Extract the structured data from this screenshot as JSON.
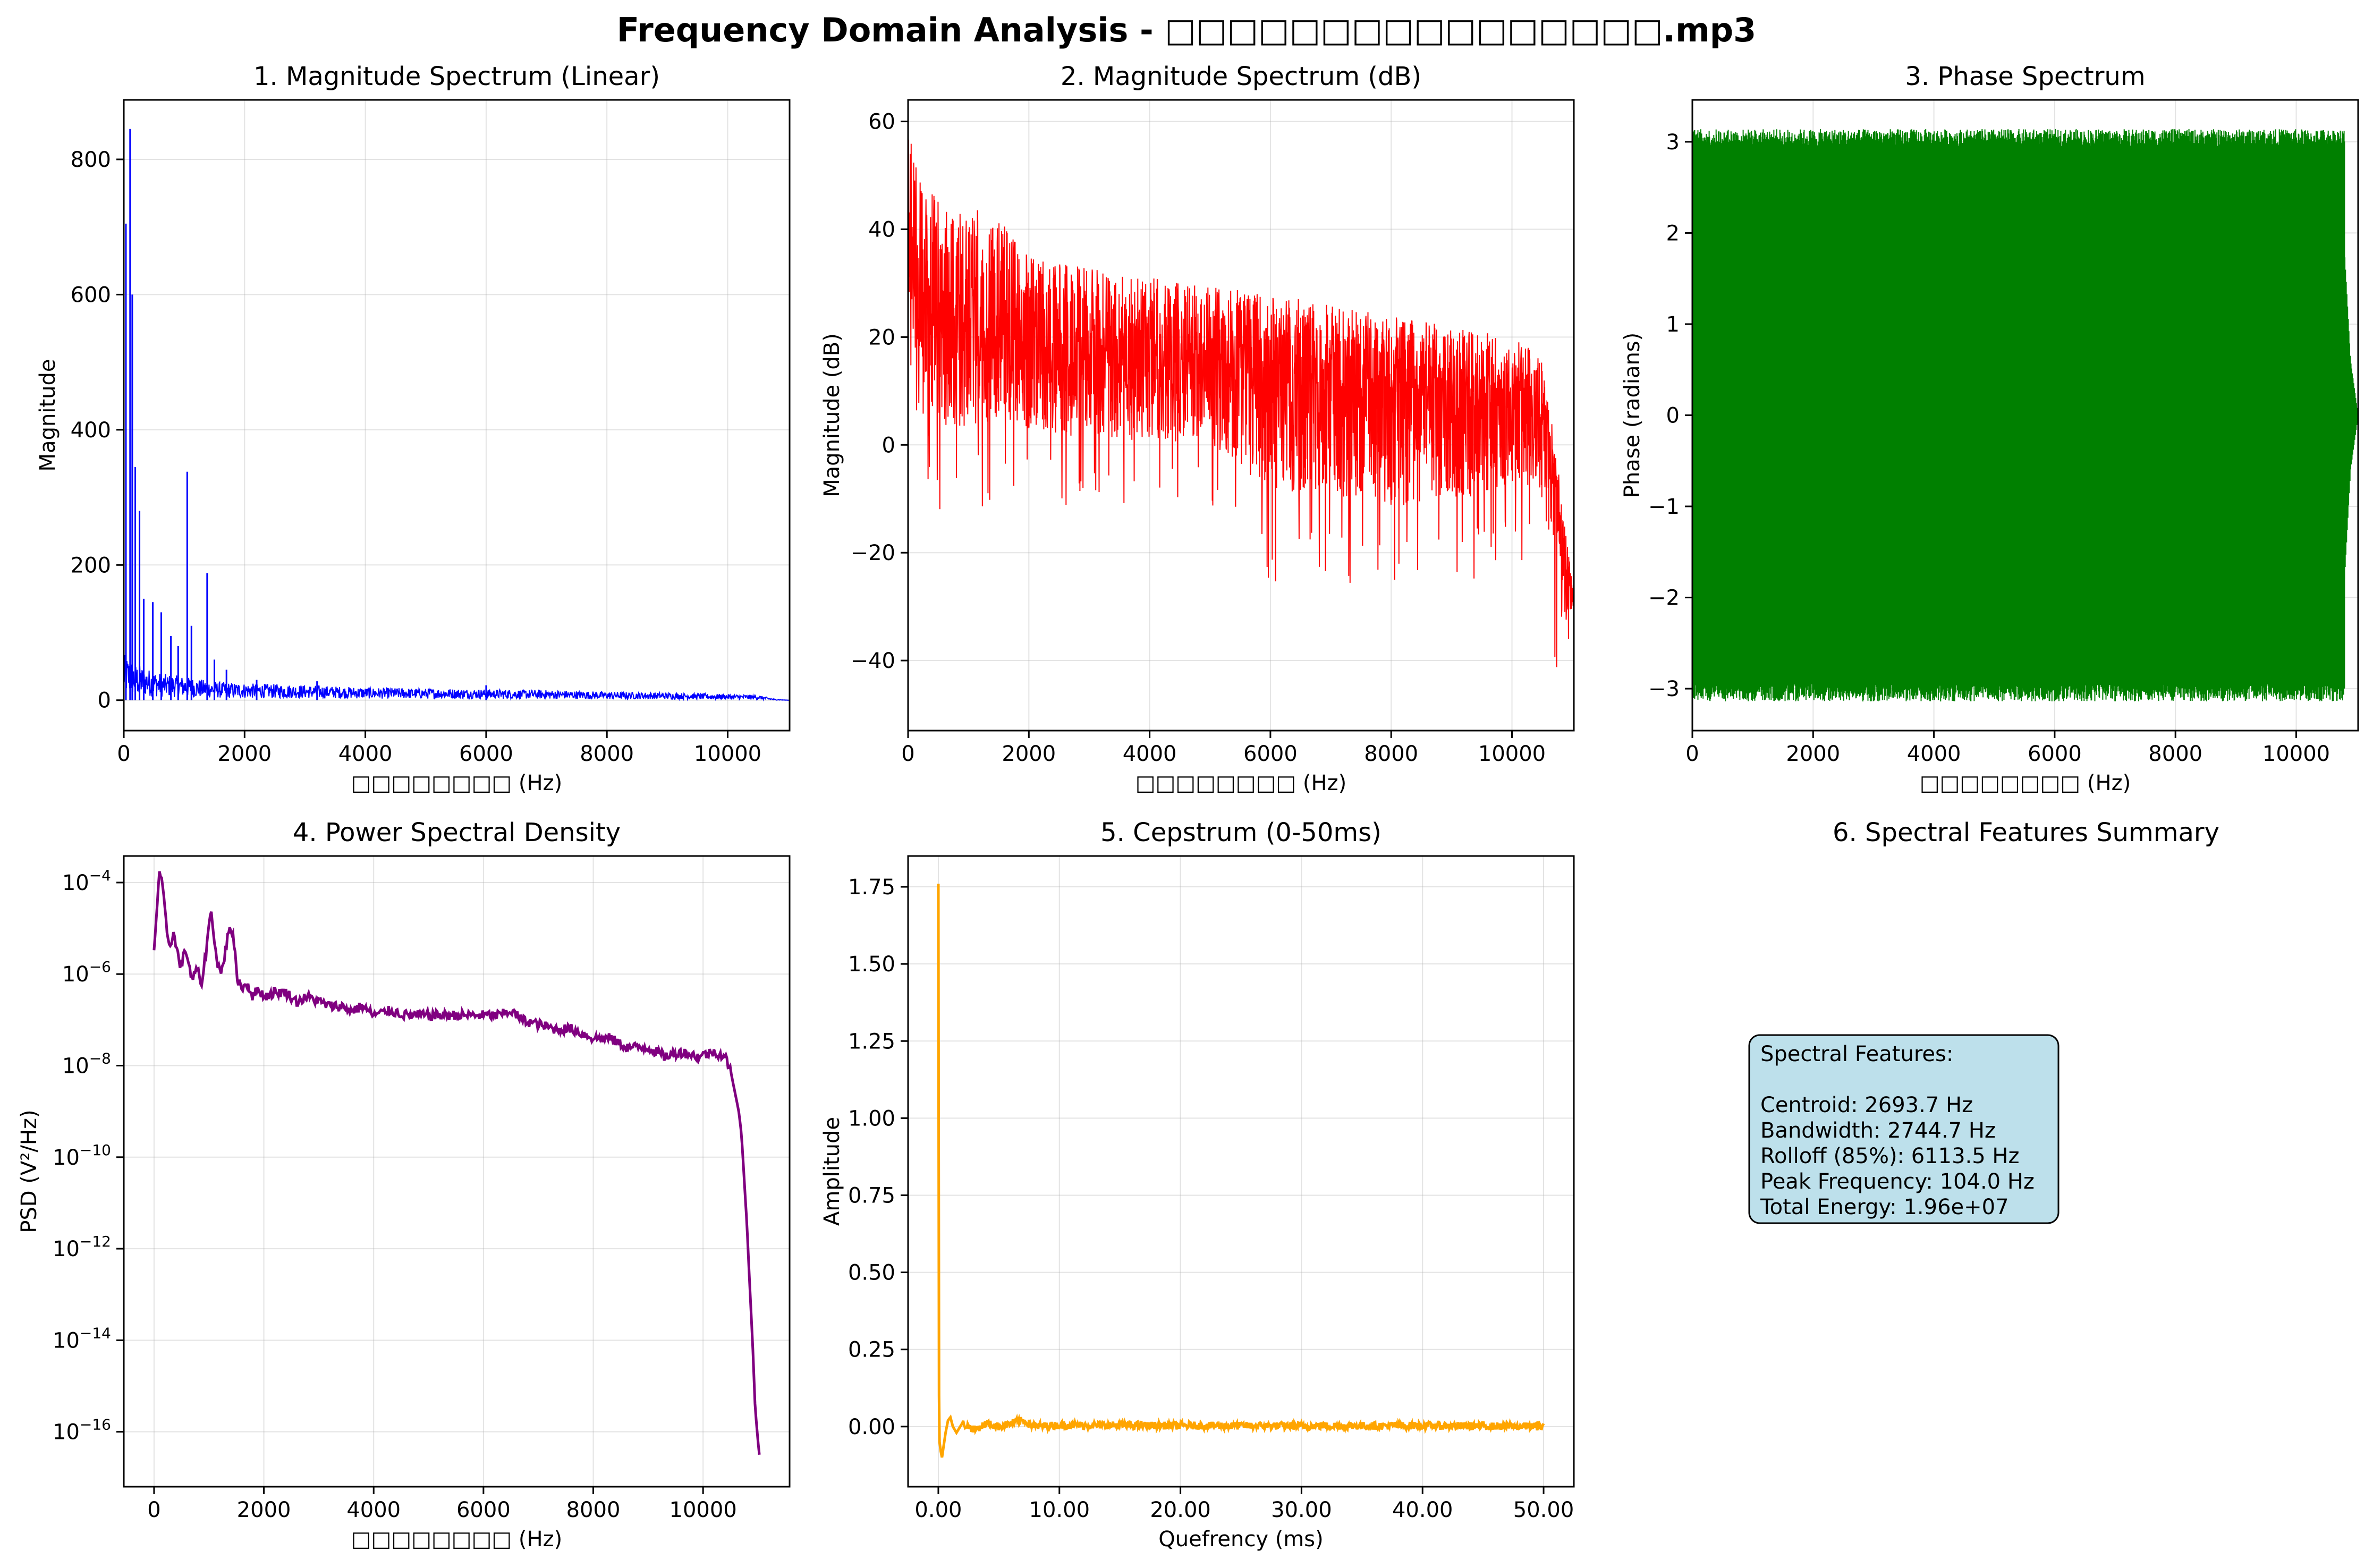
{
  "figure": {
    "title": "Frequency Domain Analysis - □□□□□□□□□□□□□□□□.mp3"
  },
  "chart_data": [
    {
      "id": "magnitude_linear",
      "type": "line",
      "title": "1. Magnitude Spectrum (Linear)",
      "xlabel": "□□□□□□□□ (Hz)",
      "ylabel": "Magnitude",
      "xlim": [
        0,
        11025
      ],
      "ylim": [
        -45,
        888
      ],
      "xticks": [
        0,
        2000,
        4000,
        6000,
        8000,
        10000
      ],
      "yticks": [
        0,
        200,
        400,
        600,
        800
      ],
      "grid": true,
      "color": "#0000ff",
      "peaks": [
        [
          35,
          705
        ],
        [
          104,
          845
        ],
        [
          140,
          600
        ],
        [
          190,
          345
        ],
        [
          260,
          280
        ],
        [
          330,
          150
        ],
        [
          480,
          145
        ],
        [
          620,
          130
        ],
        [
          780,
          95
        ],
        [
          900,
          80
        ],
        [
          1050,
          338
        ],
        [
          1120,
          110
        ],
        [
          1380,
          188
        ],
        [
          1500,
          60
        ],
        [
          1700,
          45
        ],
        [
          2200,
          30
        ],
        [
          3200,
          28
        ],
        [
          6000,
          22
        ]
      ],
      "envelope": [
        [
          0,
          55
        ],
        [
          150,
          45
        ],
        [
          300,
          40
        ],
        [
          600,
          32
        ],
        [
          1000,
          28
        ],
        [
          1500,
          22
        ],
        [
          2000,
          20
        ],
        [
          3000,
          18
        ],
        [
          4000,
          15
        ],
        [
          5000,
          14
        ],
        [
          6000,
          13
        ],
        [
          7000,
          12
        ],
        [
          8000,
          10
        ],
        [
          9000,
          9
        ],
        [
          10000,
          7
        ],
        [
          10500,
          6
        ],
        [
          10800,
          1
        ],
        [
          11025,
          0
        ]
      ]
    },
    {
      "id": "magnitude_db",
      "type": "line",
      "title": "2. Magnitude Spectrum (dB)",
      "xlabel": "□□□□□□□□ (Hz)",
      "ylabel": "Magnitude (dB)",
      "xlim": [
        0,
        11025
      ],
      "ylim": [
        -53,
        64
      ],
      "xticks": [
        0,
        2000,
        4000,
        6000,
        8000,
        10000
      ],
      "yticks": [
        -40,
        -20,
        0,
        20,
        40,
        60
      ],
      "grid": true,
      "color": "#ff0000",
      "trend": [
        [
          0,
          35
        ],
        [
          200,
          30
        ],
        [
          600,
          27
        ],
        [
          1000,
          24
        ],
        [
          2000,
          20
        ],
        [
          4000,
          17
        ],
        [
          6000,
          14
        ],
        [
          8000,
          11
        ],
        [
          10000,
          9
        ],
        [
          10450,
          8
        ],
        [
          10600,
          2
        ],
        [
          10750,
          -10
        ],
        [
          10900,
          -25
        ],
        [
          11025,
          -29
        ]
      ],
      "upper": [
        [
          0,
          58
        ],
        [
          300,
          48
        ],
        [
          800,
          43
        ],
        [
          1300,
          45
        ],
        [
          2000,
          35
        ],
        [
          4000,
          31
        ],
        [
          6000,
          28
        ],
        [
          8000,
          24
        ],
        [
          10000,
          20
        ],
        [
          10450,
          18
        ],
        [
          10700,
          2
        ],
        [
          11025,
          -28
        ]
      ],
      "lower": [
        [
          0,
          10
        ],
        [
          500,
          -17
        ],
        [
          1500,
          -10
        ],
        [
          3000,
          -13
        ],
        [
          5000,
          -12
        ],
        [
          6000,
          -27
        ],
        [
          8000,
          -30
        ],
        [
          9500,
          -25
        ],
        [
          10450,
          -20
        ],
        [
          10800,
          -47
        ],
        [
          11025,
          -30
        ]
      ]
    },
    {
      "id": "phase",
      "type": "line",
      "title": "3. Phase Spectrum",
      "xlabel": "□□□□□□□□ (Hz)",
      "ylabel": "Phase (radians)",
      "xlim": [
        0,
        11025
      ],
      "ylim": [
        -3.46,
        3.46
      ],
      "xticks": [
        0,
        2000,
        4000,
        6000,
        8000,
        10000
      ],
      "yticks": [
        -3,
        -2,
        -1,
        0,
        1,
        2,
        3
      ],
      "grid": true,
      "color": "#008000",
      "range": [
        -3.1416,
        3.1416
      ],
      "tail": [
        [
          10800,
          1.8
        ],
        [
          10900,
          0.6
        ],
        [
          11025,
          0.0
        ]
      ]
    },
    {
      "id": "psd",
      "type": "line",
      "title": "4. Power Spectral Density",
      "xlabel": "□□□□□□□□ (Hz)",
      "ylabel": "PSD (V²/Hz)",
      "xlim": [
        -551,
        11576
      ],
      "ylim_log10": [
        -17.2,
        -3.42
      ],
      "yscale": "log",
      "xticks": [
        0,
        2000,
        4000,
        6000,
        8000,
        10000
      ],
      "yticks_exp": [
        -16,
        -14,
        -12,
        -10,
        -8,
        -6,
        -4
      ],
      "grid": true,
      "color": "#800080",
      "points": [
        [
          0,
          -5.5
        ],
        [
          50,
          -4.6
        ],
        [
          90,
          -3.85
        ],
        [
          130,
          -3.9
        ],
        [
          170,
          -4.3
        ],
        [
          220,
          -4.9
        ],
        [
          280,
          -5.4
        ],
        [
          350,
          -5.1
        ],
        [
          420,
          -5.5
        ],
        [
          500,
          -5.9
        ],
        [
          560,
          -5.4
        ],
        [
          620,
          -5.7
        ],
        [
          700,
          -6.2
        ],
        [
          780,
          -5.8
        ],
        [
          850,
          -6.3
        ],
        [
          950,
          -5.5
        ],
        [
          1030,
          -4.6
        ],
        [
          1080,
          -5.0
        ],
        [
          1140,
          -5.7
        ],
        [
          1220,
          -6.0
        ],
        [
          1300,
          -5.5
        ],
        [
          1380,
          -4.9
        ],
        [
          1440,
          -5.2
        ],
        [
          1520,
          -6.1
        ],
        [
          1600,
          -6.3
        ],
        [
          1700,
          -6.2
        ],
        [
          1800,
          -6.5
        ],
        [
          1900,
          -6.3
        ],
        [
          2000,
          -6.5
        ],
        [
          2200,
          -6.4
        ],
        [
          2400,
          -6.4
        ],
        [
          2600,
          -6.6
        ],
        [
          2800,
          -6.5
        ],
        [
          3000,
          -6.6
        ],
        [
          3200,
          -6.7
        ],
        [
          3400,
          -6.7
        ],
        [
          3600,
          -6.8
        ],
        [
          3800,
          -6.7
        ],
        [
          4000,
          -6.9
        ],
        [
          4300,
          -6.8
        ],
        [
          4600,
          -6.9
        ],
        [
          5000,
          -6.9
        ],
        [
          5300,
          -6.9
        ],
        [
          5600,
          -6.9
        ],
        [
          6000,
          -6.9
        ],
        [
          6300,
          -6.9
        ],
        [
          6500,
          -6.8
        ],
        [
          6700,
          -7.0
        ],
        [
          7000,
          -7.1
        ],
        [
          7300,
          -7.2
        ],
        [
          7600,
          -7.2
        ],
        [
          8000,
          -7.4
        ],
        [
          8300,
          -7.4
        ],
        [
          8600,
          -7.6
        ],
        [
          9000,
          -7.6
        ],
        [
          9300,
          -7.8
        ],
        [
          9600,
          -7.7
        ],
        [
          9900,
          -7.8
        ],
        [
          10200,
          -7.7
        ],
        [
          10400,
          -7.8
        ],
        [
          10500,
          -8.1
        ],
        [
          10600,
          -8.7
        ],
        [
          10650,
          -9.0
        ],
        [
          10700,
          -9.5
        ],
        [
          10750,
          -10.5
        ],
        [
          10800,
          -11.5
        ],
        [
          10850,
          -12.8
        ],
        [
          10900,
          -14.0
        ],
        [
          10950,
          -15.5
        ],
        [
          11000,
          -16.2
        ],
        [
          11025,
          -16.5
        ]
      ]
    },
    {
      "id": "cepstrum",
      "type": "line",
      "title": "5. Cepstrum (0-50ms)",
      "xlabel": "Quefrency (ms)",
      "ylabel": "Amplitude",
      "xlim": [
        -2.5,
        52.5
      ],
      "ylim": [
        -0.195,
        1.85
      ],
      "xticks": [
        0,
        10,
        20,
        30,
        40,
        50
      ],
      "yticks": [
        0.0,
        0.25,
        0.5,
        0.75,
        1.0,
        1.25,
        1.5,
        1.75
      ],
      "grid": true,
      "color": "#ffa500",
      "points": [
        [
          0,
          1.76
        ],
        [
          0.03,
          0.9
        ],
        [
          0.06,
          0.1
        ],
        [
          0.1,
          -0.05
        ],
        [
          0.2,
          -0.08
        ],
        [
          0.3,
          -0.1
        ],
        [
          0.45,
          -0.06
        ],
        [
          0.6,
          -0.02
        ],
        [
          0.8,
          0.02
        ],
        [
          1.0,
          0.03
        ],
        [
          1.2,
          0.0
        ],
        [
          1.5,
          -0.02
        ],
        [
          2.0,
          0.01
        ],
        [
          3.0,
          -0.01
        ],
        [
          4.0,
          0.01
        ],
        [
          5.0,
          0.0
        ],
        [
          6.0,
          0.01
        ],
        [
          7.0,
          0.02
        ],
        [
          8.0,
          0.0
        ],
        [
          10.0,
          0.005
        ],
        [
          20.0,
          0.003
        ],
        [
          30.0,
          0.002
        ],
        [
          40.0,
          0.003
        ],
        [
          50.0,
          0.0
        ]
      ]
    }
  ],
  "summary": {
    "title": "6. Spectral Features Summary",
    "heading": "Spectral Features:",
    "lines": [
      "Centroid: 2693.7 Hz",
      "Bandwidth: 2744.7 Hz",
      "Rolloff (85%): 6113.5 Hz",
      "Peak Frequency: 104.0 Hz",
      "Total Energy: 1.96e+07"
    ],
    "box_color": "#add8e6"
  }
}
